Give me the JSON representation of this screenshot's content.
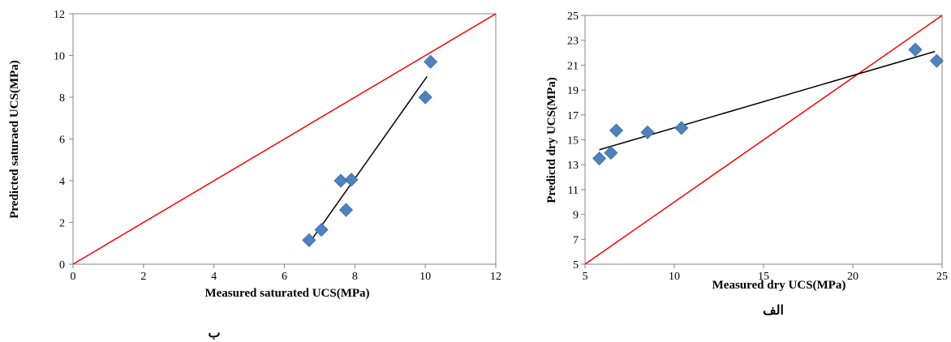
{
  "chart_data": [
    {
      "type": "scatter",
      "title": "",
      "xlabel": "Measured saturated UCS(MPa)",
      "ylabel": "Predicted saturaed UCS(MPa)",
      "caption": "ب",
      "xlim": [
        0,
        12
      ],
      "ylim": [
        0,
        12
      ],
      "xticks": [
        0,
        2,
        4,
        6,
        8,
        10,
        12
      ],
      "yticks": [
        0,
        2,
        4,
        6,
        8,
        10,
        12
      ],
      "grid": false,
      "marker_color": "#4f81bd",
      "points": [
        {
          "x": 6.7,
          "y": 1.15
        },
        {
          "x": 7.05,
          "y": 1.65
        },
        {
          "x": 7.6,
          "y": 4.0
        },
        {
          "x": 7.75,
          "y": 2.6
        },
        {
          "x": 7.9,
          "y": 4.05
        },
        {
          "x": 10.0,
          "y": 8.0
        },
        {
          "x": 10.15,
          "y": 9.7
        }
      ],
      "reference_line": {
        "color": "#ff0000",
        "x": [
          0,
          12
        ],
        "y": [
          0,
          12
        ]
      },
      "fit_line": {
        "color": "#000000",
        "x": [
          6.7,
          10.05
        ],
        "y": [
          1.0,
          9.0
        ]
      }
    },
    {
      "type": "scatter",
      "title": "",
      "xlabel": "Measured dry UCS(MPa)",
      "ylabel": "Predictd dry UCS(MPa)",
      "caption": "الف",
      "xlim": [
        5,
        25
      ],
      "ylim": [
        5,
        25
      ],
      "xticks": [
        5,
        10,
        15,
        20,
        25
      ],
      "yticks": [
        5,
        7,
        9,
        11,
        13,
        15,
        17,
        19,
        21,
        23,
        25
      ],
      "grid": false,
      "marker_color": "#4f81bd",
      "points": [
        {
          "x": 5.8,
          "y": 13.5
        },
        {
          "x": 6.45,
          "y": 13.95
        },
        {
          "x": 6.75,
          "y": 15.75
        },
        {
          "x": 8.5,
          "y": 15.6
        },
        {
          "x": 10.4,
          "y": 15.95
        },
        {
          "x": 23.5,
          "y": 22.25
        },
        {
          "x": 24.7,
          "y": 21.35
        }
      ],
      "reference_line": {
        "color": "#ff0000",
        "x": [
          5,
          25
        ],
        "y": [
          5,
          25
        ]
      },
      "fit_line": {
        "color": "#000000",
        "x": [
          5.8,
          24.6
        ],
        "y": [
          14.2,
          22.1
        ]
      }
    }
  ]
}
